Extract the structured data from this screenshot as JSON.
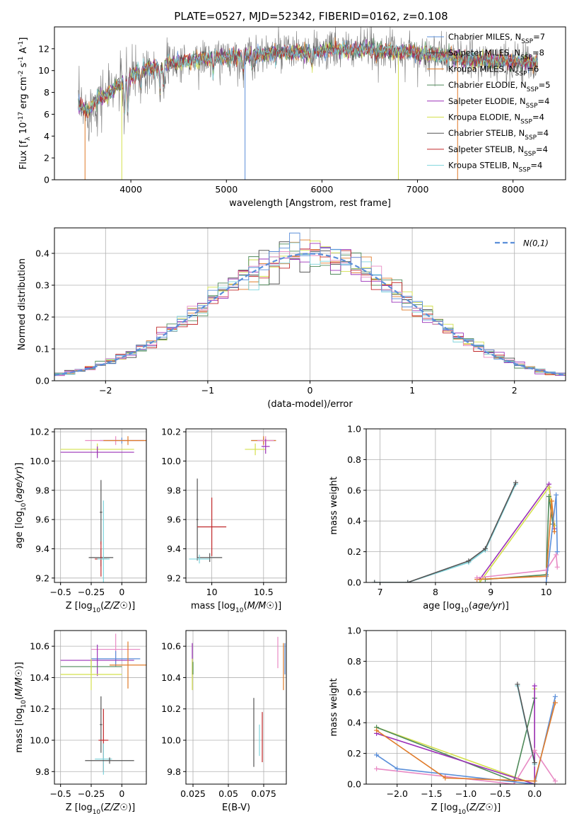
{
  "figure": {
    "title": "PLATE=0527, MJD=52342, FIBERID=0162, z=0.108"
  },
  "colors": {
    "chabrier_miles": "#5b8fd9",
    "salpeter_miles": "#444444",
    "kroupa_miles": "#e07b2a",
    "chabrier_elodie": "#4f8a5a",
    "salpeter_elodie": "#9b30b8",
    "kroupa_elodie": "#d4e04c",
    "chabrier_stelib": "#555555",
    "salpeter_stelib": "#c0282a",
    "kroupa_stelib": "#7ed4dc",
    "extra_pink": "#e88ac4",
    "grid": "#b0b0b0"
  },
  "chart_data": [
    {
      "id": "spectrum",
      "type": "line",
      "title": "PLATE=0527, MJD=52342, FIBERID=0162, z=0.108",
      "xlabel": "wavelength [Angstrom, rest frame]",
      "ylabel": "Flux [f_λ 10^-17 erg cm^-2 s^-1 A^-1]",
      "xlim": [
        3200,
        8550
      ],
      "ylim": [
        0,
        14
      ],
      "xticks": [
        4000,
        5000,
        6000,
        7000,
        8000
      ],
      "yticks": [
        0,
        2,
        4,
        6,
        8,
        10,
        12
      ],
      "grid": false,
      "legend_position": "top-right",
      "continuum": [
        [
          3450,
          6.8
        ],
        [
          3550,
          6.2
        ],
        [
          3650,
          7.4
        ],
        [
          3750,
          7.8
        ],
        [
          3850,
          8.6
        ],
        [
          3950,
          9.0
        ],
        [
          4050,
          9.8
        ],
        [
          4150,
          10.2
        ],
        [
          4300,
          10.4
        ],
        [
          4500,
          10.8
        ],
        [
          4700,
          11.0
        ],
        [
          4900,
          11.2
        ],
        [
          5100,
          11.3
        ],
        [
          5300,
          11.4
        ],
        [
          5500,
          11.6
        ],
        [
          5700,
          11.7
        ],
        [
          5900,
          11.6
        ],
        [
          6100,
          11.9
        ],
        [
          6300,
          11.9
        ],
        [
          6500,
          12.0
        ],
        [
          6700,
          11.8
        ],
        [
          6900,
          11.7
        ],
        [
          7100,
          11.5
        ],
        [
          7300,
          11.3
        ],
        [
          7500,
          11.0
        ],
        [
          7700,
          10.9
        ],
        [
          7900,
          10.8
        ],
        [
          8100,
          10.8
        ],
        [
          8250,
          10.7
        ]
      ],
      "absorption_lines": [
        [
          3934,
          5.6
        ],
        [
          3969,
          6.2
        ],
        [
          4101,
          8.4
        ],
        [
          4305,
          7.8
        ],
        [
          4341,
          8.6
        ],
        [
          4861,
          9.6
        ],
        [
          5175,
          9.7
        ],
        [
          5270,
          10.2
        ],
        [
          5895,
          10.4
        ],
        [
          6563,
          11.2
        ]
      ],
      "series": [
        {
          "name": "Chabrier MILES, N_SSP=7",
          "color": "#5b8fd9"
        },
        {
          "name": "Salpeter MILES, N_SSP=8",
          "color": "#444444"
        },
        {
          "name": "Kroupa MILES, N_SSP=6",
          "color": "#e07b2a"
        },
        {
          "name": "Chabrier ELODIE, N_SSP=5",
          "color": "#4f8a5a"
        },
        {
          "name": "Salpeter ELODIE, N_SSP=4",
          "color": "#9b30b8"
        },
        {
          "name": "Kroupa ELODIE, N_SSP=4",
          "color": "#d4e04c"
        },
        {
          "name": "Chabrier STELIB, N_SSP=4",
          "color": "#555555"
        },
        {
          "name": "Salpeter STELIB, N_SSP=4",
          "color": "#c0282a"
        },
        {
          "name": "Kroupa STELIB, N_SSP=4",
          "color": "#7ed4dc"
        }
      ]
    },
    {
      "id": "residuals",
      "type": "line",
      "xlabel": "(data-model)/error",
      "ylabel": "Normed distribution",
      "xlim": [
        -2.5,
        2.5
      ],
      "ylim": [
        0,
        0.48
      ],
      "xticks": [
        -2,
        -1,
        0,
        1,
        2
      ],
      "yticks": [
        0.0,
        0.1,
        0.2,
        0.3,
        0.4
      ],
      "grid": true,
      "legend_position": "top-right",
      "reference_curve": {
        "name": "N(0,1)",
        "mean": 0,
        "sigma": 1,
        "color": "#5b8fd9"
      },
      "bin_width": 0.1,
      "bin_start": -2.5,
      "histogram_colors": [
        "#e07b2a",
        "#444444",
        "#d4e04c",
        "#4f8a5a",
        "#9b30b8",
        "#c0282a",
        "#7ed4dc",
        "#e88ac4",
        "#5b8fd9"
      ]
    },
    {
      "id": "age_vs_Z",
      "type": "scatter",
      "xlabel": "Z [log10(Z/Z☉)]",
      "ylabel": "age [log10(age/yr)]",
      "xlim": [
        -0.55,
        0.2
      ],
      "ylim": [
        9.17,
        10.22
      ],
      "xticks": [
        -0.5,
        -0.25,
        0.0
      ],
      "yticks": [
        9.2,
        9.4,
        9.6,
        9.8,
        10.0,
        10.2
      ],
      "grid": true,
      "points": [
        {
          "x": 0.0,
          "y": 10.14,
          "xerr": 0.18,
          "yerr": 0.02,
          "color": "#5b8fd9"
        },
        {
          "x": -0.05,
          "y": 10.14,
          "xerr": 0.25,
          "yerr": 0.03,
          "color": "#e88ac4"
        },
        {
          "x": 0.05,
          "y": 10.14,
          "xerr": 0.2,
          "yerr": 0.03,
          "color": "#e07b2a"
        },
        {
          "x": -0.2,
          "y": 10.08,
          "xerr": 0.3,
          "yerr": 0.04,
          "color": "#d4e04c"
        },
        {
          "x": -0.2,
          "y": 10.06,
          "xerr": 0.3,
          "yerr": 0.04,
          "color": "#9b30b8"
        },
        {
          "x": -0.17,
          "y": 9.65,
          "xerr": 0.01,
          "yerr": 0.22,
          "color": "#555555"
        },
        {
          "x": -0.17,
          "y": 9.34,
          "xerr": 0.1,
          "yerr": 0.06,
          "color": "#555555"
        },
        {
          "x": -0.17,
          "y": 9.33,
          "xerr": 0.05,
          "yerr": 0.12,
          "color": "#c0282a"
        },
        {
          "x": -0.15,
          "y": 9.33,
          "xerr": 0.05,
          "yerr": 0.4,
          "color": "#7ed4dc"
        }
      ]
    },
    {
      "id": "age_vs_mass",
      "type": "scatter",
      "xlabel": "mass [log10(M/M☉)]",
      "ylabel": "",
      "xlim": [
        9.75,
        10.72
      ],
      "ylim": [
        9.17,
        10.22
      ],
      "xticks": [
        10.0,
        10.5
      ],
      "yticks": [
        9.2,
        9.4,
        9.6,
        9.8,
        10.0,
        10.2
      ],
      "grid": true,
      "points": [
        {
          "x": 10.5,
          "y": 10.14,
          "xerr": 0.12,
          "yerr": 0.02,
          "color": "#5b8fd9"
        },
        {
          "x": 10.5,
          "y": 10.14,
          "xerr": 0.12,
          "yerr": 0.03,
          "color": "#e07b2a"
        },
        {
          "x": 10.52,
          "y": 10.14,
          "xerr": 0.08,
          "yerr": 0.03,
          "color": "#e88ac4"
        },
        {
          "x": 10.42,
          "y": 10.08,
          "xerr": 0.1,
          "yerr": 0.04,
          "color": "#d4e04c"
        },
        {
          "x": 10.52,
          "y": 10.1,
          "xerr": 0.04,
          "yerr": 0.05,
          "color": "#9b30b8"
        },
        {
          "x": 9.86,
          "y": 9.6,
          "xerr": 0.01,
          "yerr": 0.28,
          "color": "#555555"
        },
        {
          "x": 9.98,
          "y": 9.34,
          "xerr": 0.12,
          "yerr": 0.03,
          "color": "#555555"
        },
        {
          "x": 10.0,
          "y": 9.55,
          "xerr": 0.14,
          "yerr": 0.2,
          "color": "#c0282a"
        },
        {
          "x": 9.88,
          "y": 9.33,
          "xerr": 0.1,
          "yerr": 0.03,
          "color": "#7ed4dc"
        }
      ]
    },
    {
      "id": "weight_vs_age",
      "type": "line",
      "xlabel": "age [log10(age/yr)]",
      "ylabel": "mass weight",
      "xlim": [
        6.75,
        10.35
      ],
      "ylim": [
        0,
        1.0
      ],
      "xticks": [
        7,
        8,
        9,
        10
      ],
      "yticks": [
        0.0,
        0.2,
        0.4,
        0.6,
        0.8,
        1.0
      ],
      "grid": true,
      "series": [
        {
          "color": "#7ed4dc",
          "points": [
            [
              6.9,
              0.0
            ],
            [
              7.5,
              0.0
            ],
            [
              8.6,
              0.13
            ],
            [
              8.9,
              0.21
            ],
            [
              9.45,
              0.64
            ]
          ]
        },
        {
          "color": "#555555",
          "points": [
            [
              6.9,
              0.0
            ],
            [
              7.5,
              0.0
            ],
            [
              8.6,
              0.14
            ],
            [
              8.9,
              0.22
            ],
            [
              9.45,
              0.65
            ]
          ]
        },
        {
          "color": "#9b30b8",
          "points": [
            [
              8.8,
              0.02
            ],
            [
              10.05,
              0.64
            ],
            [
              10.15,
              0.35
            ]
          ]
        },
        {
          "color": "#d4e04c",
          "points": [
            [
              8.8,
              0.0
            ],
            [
              10.05,
              0.62
            ],
            [
              10.15,
              0.37
            ]
          ]
        },
        {
          "color": "#4f8a5a",
          "points": [
            [
              8.9,
              0.02
            ],
            [
              10.0,
              0.05
            ],
            [
              10.05,
              0.56
            ],
            [
              10.12,
              0.38
            ]
          ]
        },
        {
          "color": "#e07b2a",
          "points": [
            [
              8.75,
              0.02
            ],
            [
              10.0,
              0.04
            ],
            [
              10.1,
              0.53
            ],
            [
              10.15,
              0.33
            ]
          ]
        },
        {
          "color": "#e88ac4",
          "points": [
            [
              8.75,
              0.03
            ],
            [
              10.0,
              0.08
            ],
            [
              10.18,
              0.18
            ],
            [
              10.2,
              0.1
            ]
          ]
        },
        {
          "color": "#5b8fd9",
          "points": [
            [
              10.0,
              0.0
            ],
            [
              10.18,
              0.57
            ],
            [
              10.2,
              0.2
            ]
          ]
        }
      ]
    },
    {
      "id": "mass_vs_Z",
      "type": "scatter",
      "xlabel": "Z [log10(Z/Z☉)]",
      "ylabel": "mass [log10(M/M☉)]",
      "xlim": [
        -0.55,
        0.2
      ],
      "ylim": [
        9.72,
        10.7
      ],
      "xticks": [
        -0.5,
        -0.25,
        0.0
      ],
      "yticks": [
        9.8,
        10.0,
        10.2,
        10.4,
        10.6
      ],
      "grid": true,
      "points": [
        {
          "x": -0.05,
          "y": 10.58,
          "xerr": 0.2,
          "yerr": 0.1,
          "color": "#e88ac4"
        },
        {
          "x": -0.05,
          "y": 10.52,
          "xerr": 0.2,
          "yerr": 0.05,
          "color": "#5b8fd9"
        },
        {
          "x": -0.2,
          "y": 10.51,
          "xerr": 0.3,
          "yerr": 0.1,
          "color": "#9b30b8"
        },
        {
          "x": 0.05,
          "y": 10.48,
          "xerr": 0.15,
          "yerr": 0.15,
          "color": "#e07b2a"
        },
        {
          "x": -0.25,
          "y": 10.47,
          "xerr": 0.25,
          "yerr": 0.04,
          "color": "#4f8a5a"
        },
        {
          "x": -0.25,
          "y": 10.42,
          "xerr": 0.25,
          "yerr": 0.1,
          "color": "#d4e04c"
        },
        {
          "x": -0.17,
          "y": 10.1,
          "xerr": 0.01,
          "yerr": 0.18,
          "color": "#555555"
        },
        {
          "x": -0.15,
          "y": 10.0,
          "xerr": 0.04,
          "yerr": 0.2,
          "color": "#c0282a"
        },
        {
          "x": -0.15,
          "y": 9.88,
          "xerr": 0.07,
          "yerr": 0.1,
          "color": "#7ed4dc"
        },
        {
          "x": -0.1,
          "y": 9.87,
          "xerr": 0.2,
          "yerr": 0.02,
          "color": "#555555"
        }
      ]
    },
    {
      "id": "mass_vs_ebv",
      "type": "scatter",
      "xlabel": "E(B-V)",
      "ylabel": "",
      "xlim": [
        0.02,
        0.091
      ],
      "ylim": [
        9.72,
        10.7
      ],
      "xticks": [
        0.025,
        0.05,
        0.075
      ],
      "yticks": [
        9.8,
        10.0,
        10.2,
        10.4,
        10.6
      ],
      "grid": true,
      "points": [
        {
          "x": 0.0245,
          "y": 10.52,
          "yerr": 0.1,
          "color": "#9b30b8"
        },
        {
          "x": 0.0245,
          "y": 10.42,
          "yerr": 0.1,
          "color": "#d4e04c"
        },
        {
          "x": 0.025,
          "y": 10.46,
          "yerr": 0.04,
          "color": "#4f8a5a"
        },
        {
          "x": 0.068,
          "y": 10.05,
          "yerr": 0.22,
          "color": "#555555"
        },
        {
          "x": 0.072,
          "y": 10.0,
          "yerr": 0.1,
          "color": "#7ed4dc"
        },
        {
          "x": 0.074,
          "y": 10.02,
          "yerr": 0.16,
          "color": "#c0282a"
        },
        {
          "x": 0.085,
          "y": 10.56,
          "yerr": 0.1,
          "color": "#e88ac4"
        },
        {
          "x": 0.089,
          "y": 10.47,
          "yerr": 0.15,
          "color": "#e07b2a"
        },
        {
          "x": 0.09,
          "y": 10.52,
          "yerr": 0.1,
          "color": "#5b8fd9"
        }
      ]
    },
    {
      "id": "weight_vs_Z",
      "type": "line",
      "xlabel": "Z [log10(Z/Z☉)]",
      "ylabel": "mass weight",
      "xlim": [
        -2.45,
        0.45
      ],
      "ylim": [
        0,
        1.0
      ],
      "xticks": [
        -2.0,
        -1.5,
        -1.0,
        -0.5,
        0.0
      ],
      "yticks": [
        0.0,
        0.2,
        0.4,
        0.6,
        0.8,
        1.0
      ],
      "grid": true,
      "series": [
        {
          "color": "#d4e04c",
          "points": [
            [
              -2.3,
              0.37
            ],
            [
              0.0,
              0.0
            ],
            [
              0.0,
              0.62
            ]
          ]
        },
        {
          "color": "#4f8a5a",
          "points": [
            [
              -2.3,
              0.37
            ],
            [
              -0.3,
              0.02
            ],
            [
              0.0,
              0.56
            ]
          ]
        },
        {
          "color": "#9b30b8",
          "points": [
            [
              -2.3,
              0.33
            ],
            [
              0.0,
              0.0
            ],
            [
              0.0,
              0.64
            ]
          ]
        },
        {
          "color": "#e88ac4",
          "points": [
            [
              -2.3,
              0.1
            ],
            [
              -1.3,
              0.05
            ],
            [
              -0.3,
              0.0
            ],
            [
              0.0,
              0.22
            ],
            [
              0.3,
              0.02
            ]
          ]
        },
        {
          "color": "#5b8fd9",
          "points": [
            [
              -2.3,
              0.19
            ],
            [
              -2.0,
              0.1
            ],
            [
              0.0,
              0.0
            ],
            [
              0.3,
              0.57
            ]
          ]
        },
        {
          "color": "#e07b2a",
          "points": [
            [
              -2.3,
              0.35
            ],
            [
              -1.3,
              0.04
            ],
            [
              0.0,
              0.02
            ],
            [
              0.3,
              0.53
            ]
          ]
        },
        {
          "color": "#7ed4dc",
          "points": [
            [
              -0.25,
              0.64
            ],
            [
              0.0,
              0.13
            ]
          ]
        },
        {
          "color": "#555555",
          "points": [
            [
              -0.25,
              0.65
            ],
            [
              0.0,
              0.14
            ]
          ]
        }
      ]
    }
  ]
}
